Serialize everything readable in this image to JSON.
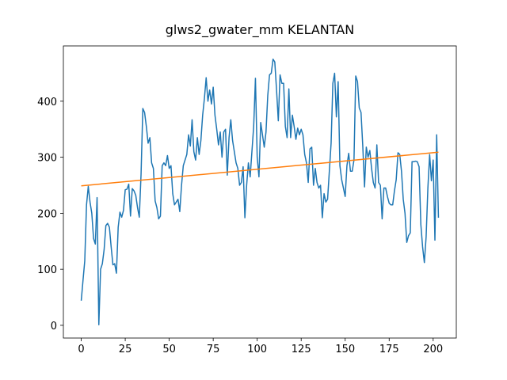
{
  "chart_data": {
    "type": "line",
    "title": "glws2_gwater_mm KELANTAN",
    "xlim": [
      -10.15,
      213.15
    ],
    "ylim": [
      -22.7,
      498.7
    ],
    "xticks": [
      0,
      25,
      50,
      75,
      100,
      125,
      150,
      175,
      200
    ],
    "yticks": [
      0,
      100,
      200,
      300,
      400
    ],
    "grid": false,
    "series": [
      {
        "color": "#1f77b4",
        "x": [
          0,
          1,
          2,
          3,
          4,
          5,
          6,
          7,
          8,
          9,
          10,
          11,
          12,
          13,
          14,
          15,
          16,
          17,
          18,
          19,
          20,
          21,
          22,
          23,
          24,
          25,
          26,
          27,
          28,
          29,
          30,
          31,
          32,
          33,
          34,
          35,
          36,
          37,
          38,
          39,
          40,
          41,
          42,
          43,
          44,
          45,
          46,
          47,
          48,
          49,
          50,
          51,
          52,
          53,
          54,
          55,
          56,
          57,
          58,
          59,
          60,
          61,
          62,
          63,
          64,
          65,
          66,
          67,
          68,
          69,
          70,
          71,
          72,
          73,
          74,
          75,
          76,
          77,
          78,
          79,
          80,
          81,
          82,
          83,
          84,
          85,
          86,
          87,
          88,
          89,
          90,
          91,
          92,
          93,
          94,
          95,
          96,
          97,
          98,
          99,
          100,
          101,
          102,
          103,
          104,
          105,
          106,
          107,
          108,
          109,
          110,
          111,
          112,
          113,
          114,
          115,
          116,
          117,
          118,
          119,
          120,
          121,
          122,
          123,
          124,
          125,
          126,
          127,
          128,
          129,
          130,
          131,
          132,
          133,
          134,
          135,
          136,
          137,
          138,
          139,
          140,
          141,
          142,
          143,
          144,
          145,
          146,
          147,
          148,
          149,
          150,
          151,
          152,
          153,
          154,
          155,
          156,
          157,
          158,
          159,
          160,
          161,
          162,
          163,
          164,
          165,
          166,
          167,
          168,
          169,
          170,
          171,
          172,
          173,
          174,
          175,
          176,
          177,
          178,
          179,
          180,
          181,
          182,
          183,
          184,
          185,
          186,
          187,
          188,
          189,
          190,
          191,
          192,
          193,
          194,
          195,
          196,
          197,
          198,
          199,
          200,
          201,
          202,
          203
        ],
        "values": [
          44,
          80,
          115,
          215,
          248,
          220,
          200,
          155,
          145,
          228,
          1,
          100,
          110,
          135,
          178,
          182,
          175,
          140,
          108,
          110,
          93,
          175,
          202,
          193,
          205,
          242,
          243,
          252,
          195,
          244,
          240,
          232,
          210,
          193,
          270,
          387,
          380,
          355,
          325,
          335,
          290,
          280,
          222,
          210,
          190,
          195,
          285,
          290,
          285,
          303,
          280,
          285,
          235,
          215,
          220,
          225,
          203,
          250,
          285,
          295,
          305,
          340,
          320,
          367,
          310,
          295,
          335,
          305,
          330,
          375,
          405,
          442,
          400,
          420,
          395,
          425,
          375,
          350,
          322,
          345,
          300,
          345,
          350,
          268,
          335,
          367,
          330,
          310,
          290,
          280,
          250,
          255,
          283,
          192,
          250,
          290,
          265,
          310,
          355,
          441,
          300,
          265,
          362,
          340,
          318,
          345,
          410,
          447,
          450,
          475,
          470,
          420,
          365,
          447,
          432,
          432,
          355,
          335,
          422,
          335,
          375,
          355,
          332,
          352,
          340,
          350,
          340,
          305,
          290,
          255,
          315,
          318,
          250,
          280,
          255,
          245,
          250,
          192,
          235,
          220,
          225,
          275,
          325,
          432,
          450,
          372,
          435,
          285,
          260,
          245,
          230,
          285,
          307,
          275,
          275,
          295,
          445,
          435,
          388,
          380,
          320,
          247,
          318,
          300,
          312,
          280,
          255,
          245,
          322,
          255,
          250,
          190,
          245,
          245,
          230,
          218,
          215,
          215,
          240,
          260,
          308,
          305,
          275,
          225,
          200,
          148,
          160,
          165,
          292,
          292,
          293,
          292,
          283,
          180,
          140,
          112,
          158,
          245,
          305,
          258,
          295,
          152,
          340,
          192
        ]
      },
      {
        "color": "#ff7f0e",
        "x": [
          0,
          203
        ],
        "values": [
          249,
          309
        ]
      }
    ]
  }
}
